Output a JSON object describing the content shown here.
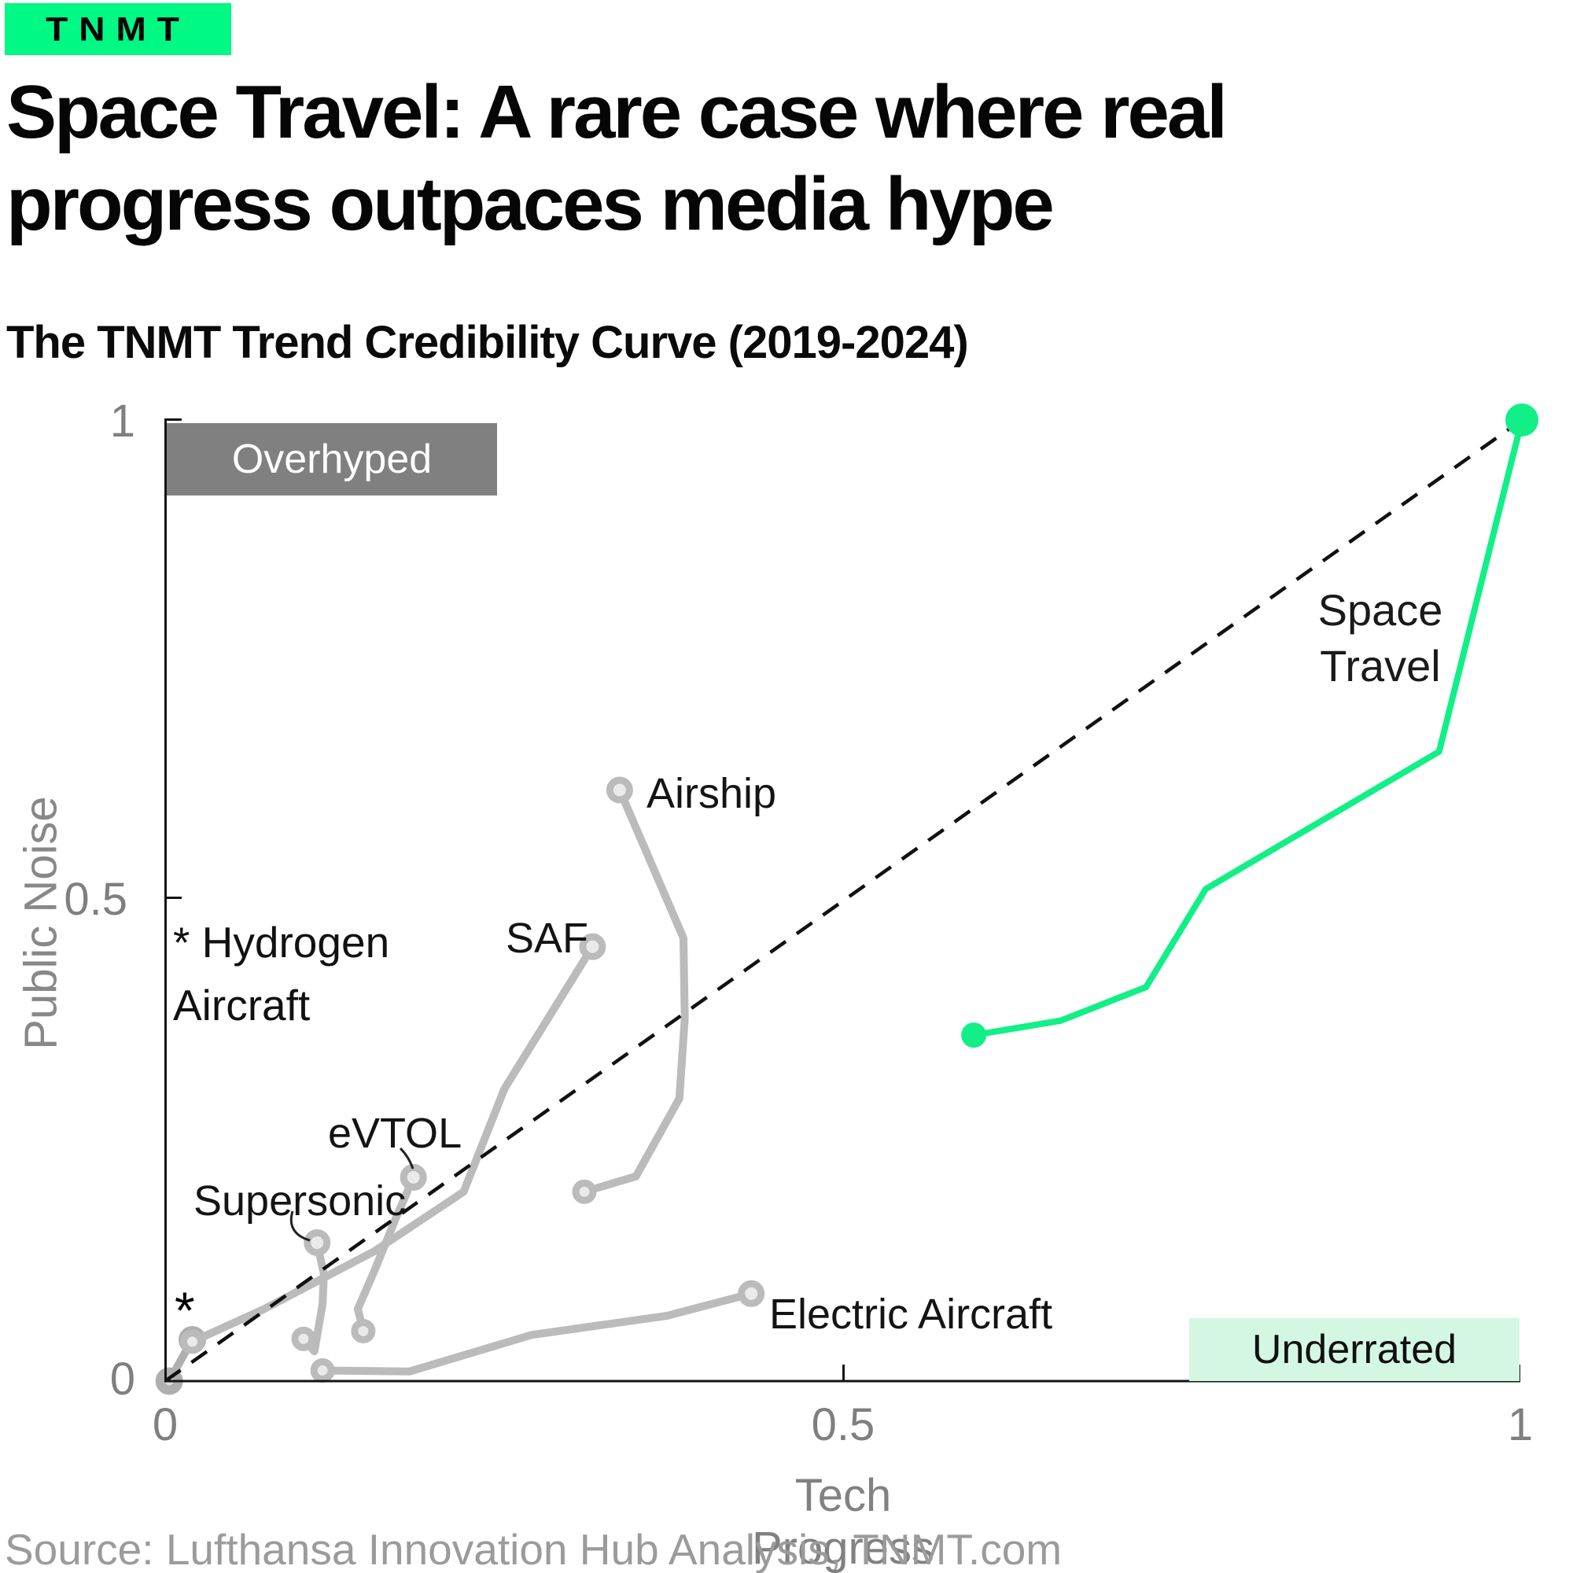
{
  "logo": {
    "text": "TNMT",
    "background": "#00F884"
  },
  "header": {
    "title_lines": [
      "Space Travel: A rare case where real",
      "progress outpaces media hype"
    ],
    "subtitle": "The TNMT Trend Credibility Curve (2019-2024)"
  },
  "colors": {
    "brand_green": "#00F884",
    "line_green": "#12EF87",
    "mint_box": "#D4F7E3",
    "gray_box": "#808080",
    "gray_line": "#BBBBBB",
    "marker_hole": "#EAEAEA",
    "dark_marker": "#ABABAB",
    "axis_line": "#141414",
    "tick_text": "#7f7f7f"
  },
  "regions": {
    "overhyped": "Overhyped",
    "underrated": "Underrated"
  },
  "annotations": {
    "space_travel": "Space Travel",
    "airship": "Airship",
    "saf": "SAF",
    "evtol": "eVTOL",
    "supersonic": "Supersonic",
    "electric": "Electric Aircraft",
    "hydrogen_note": "* Hydrogen Aircraft",
    "asterisk": "*"
  },
  "axis": {
    "x_title": "Tech Progress",
    "y_title": "Public Noise",
    "x_tick_labels": [
      "0",
      "0.5",
      "1"
    ],
    "y_tick_labels": [
      "0",
      "0.5",
      "1"
    ]
  },
  "source": "Source: Lufthansa Innovation Hub Analysis, TNMT.com",
  "chart_data": {
    "type": "line",
    "title": "The TNMT Trend Credibility Curve (2019-2024)",
    "xlabel": "Tech Progress",
    "ylabel": "Public Noise",
    "xlim": [
      0,
      1
    ],
    "ylim": [
      0,
      1
    ],
    "x_ticks": [
      0,
      0.5,
      1
    ],
    "y_ticks": [
      0,
      0.5,
      1
    ],
    "grid": false,
    "legend": "none",
    "identity_line": {
      "from": [
        0,
        0
      ],
      "to": [
        1,
        1
      ],
      "style": "dashed",
      "color": "#111111"
    },
    "region_labels": [
      {
        "label": "Overhyped",
        "position": "top-left"
      },
      {
        "label": "Underrated",
        "position": "bottom-right"
      }
    ],
    "series": [
      {
        "name": "Hydrogen Aircraft",
        "color": "#AFAFAF",
        "marker": "thick-ring",
        "highlight": false,
        "points": [
          [
            0.003,
            0.0
          ],
          [
            0.02,
            0.043
          ]
        ]
      },
      {
        "name": "SAF",
        "color": "#BBBBBB",
        "marker": "ring",
        "highlight": false,
        "points": [
          [
            0.02,
            0.041
          ],
          [
            0.073,
            0.075
          ],
          [
            0.154,
            0.135
          ],
          [
            0.22,
            0.197
          ],
          [
            0.25,
            0.304
          ],
          [
            0.315,
            0.452
          ]
        ]
      },
      {
        "name": "Electric Aircraft",
        "color": "#BBBBBB",
        "marker": "ring",
        "highlight": false,
        "points": [
          [
            0.116,
            0.011
          ],
          [
            0.18,
            0.01
          ],
          [
            0.27,
            0.048
          ],
          [
            0.37,
            0.068
          ],
          [
            0.432,
            0.091
          ]
        ]
      },
      {
        "name": "Supersonic",
        "color": "#BBBBBB",
        "marker": "ring",
        "highlight": false,
        "points": [
          [
            0.102,
            0.044
          ],
          [
            0.11,
            0.031
          ],
          [
            0.116,
            0.08
          ],
          [
            0.117,
            0.111
          ],
          [
            0.112,
            0.144
          ]
        ]
      },
      {
        "name": "eVTOL",
        "color": "#BBBBBB",
        "marker": "ring",
        "highlight": false,
        "points": [
          [
            0.146,
            0.052
          ],
          [
            0.142,
            0.075
          ],
          [
            0.154,
            0.114
          ],
          [
            0.169,
            0.166
          ],
          [
            0.183,
            0.212
          ]
        ]
      },
      {
        "name": "Airship",
        "color": "#BBBBBB",
        "marker": "ring",
        "highlight": false,
        "points": [
          [
            0.309,
            0.197
          ],
          [
            0.347,
            0.213
          ],
          [
            0.379,
            0.294
          ],
          [
            0.383,
            0.378
          ],
          [
            0.382,
            0.461
          ],
          [
            0.335,
            0.615
          ]
        ]
      },
      {
        "name": "Space Travel",
        "color": "#12EF87",
        "marker": "dot",
        "highlight": true,
        "points": [
          [
            0.596,
            0.36
          ],
          [
            0.66,
            0.375
          ],
          [
            0.723,
            0.41
          ],
          [
            0.767,
            0.512
          ],
          [
            0.939,
            0.655
          ],
          [
            1.0,
            1.0
          ]
        ]
      }
    ]
  }
}
